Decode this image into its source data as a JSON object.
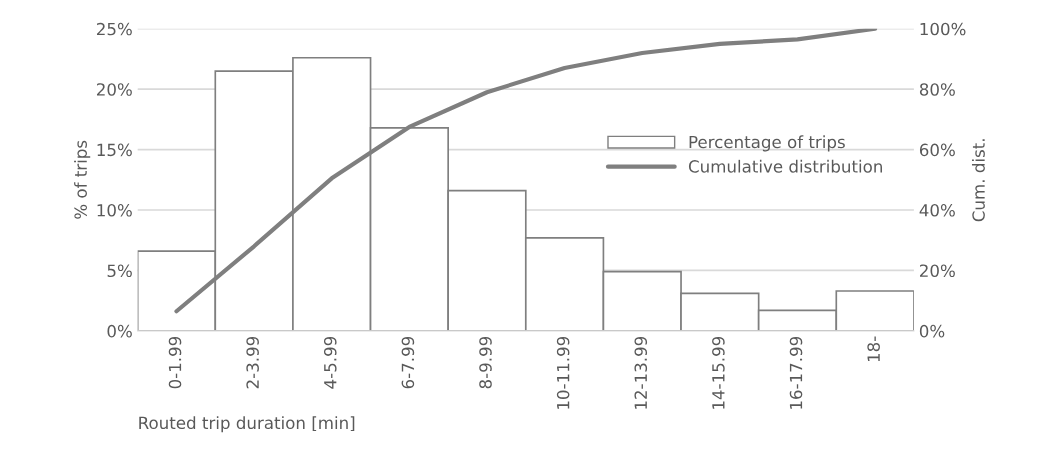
{
  "chart_data": {
    "type": "bar",
    "xlabel": "Routed trip duration [min]",
    "ylabel": "% of trips",
    "y2label": "Cum. dist.",
    "categories": [
      "0-1.99",
      "2-3.99",
      "4-5.99",
      "6-7.99",
      "8-9.99",
      "10-11.99",
      "12-13.99",
      "14-15.99",
      "16-17.99",
      "18-"
    ],
    "series": [
      {
        "name": "Percentage of trips",
        "color": "#ffffff",
        "values": [
          6.6,
          21.5,
          22.6,
          16.8,
          11.6,
          7.7,
          4.9,
          3.1,
          1.7,
          3.3
        ]
      },
      {
        "name": "Cumulative distribution",
        "type": "line",
        "axis": "y2",
        "color": "#7f7f7f",
        "values": [
          6.5,
          28,
          50.5,
          67.5,
          79,
          87,
          92,
          95,
          96.5,
          100
        ]
      }
    ],
    "ylim": [
      0,
      25
    ],
    "yticks": [
      {
        "value": 0,
        "label": "0%"
      },
      {
        "value": 5,
        "label": "5%"
      },
      {
        "value": 10,
        "label": "10%"
      },
      {
        "value": 15,
        "label": "15%"
      },
      {
        "value": 20,
        "label": "20%"
      },
      {
        "value": 25,
        "label": "25%"
      }
    ],
    "y2lim": [
      0,
      100
    ],
    "y2ticks": [
      {
        "value": 0,
        "label": "0%"
      },
      {
        "value": 20,
        "label": "20%"
      },
      {
        "value": 40,
        "label": "40%"
      },
      {
        "value": 60,
        "label": "60%"
      },
      {
        "value": 80,
        "label": "80%"
      },
      {
        "value": 100,
        "label": "100%"
      }
    ],
    "grid": "y",
    "legend": "right",
    "marker": "none",
    "line_style": "solid"
  }
}
